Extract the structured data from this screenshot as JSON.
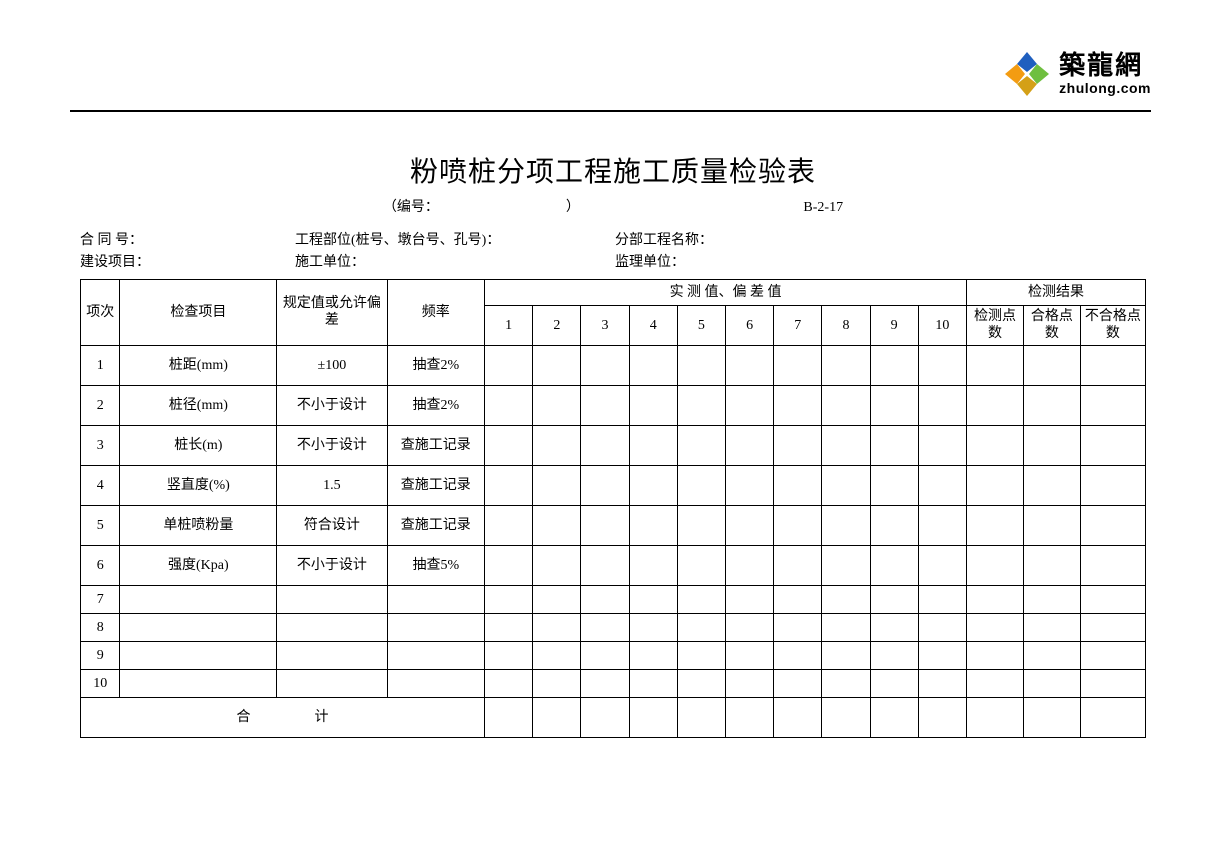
{
  "logo": {
    "cn": "築龍網",
    "en": "zhulong.com",
    "colors": {
      "blue": "#1f5fbf",
      "orange": "#f39c12",
      "green": "#6fbf3f",
      "gold": "#d4a017"
    }
  },
  "title": "粉喷桩分项工程施工质量检验表",
  "subtitle": {
    "label": "（编号：",
    "close": "）",
    "code": "B-2-17"
  },
  "meta": {
    "row1": {
      "c1": "合 同 号：",
      "c2": "工程部位(桩号、墩台号、孔号)：",
      "c3": "分部工程名称："
    },
    "row2": {
      "c1": "建设项目：",
      "c2": "施工单位：",
      "c3": "监理单位："
    }
  },
  "headers": {
    "seq": "项次",
    "item": "检查项目",
    "std": "规定值或允许偏差",
    "freq": "频率",
    "measured": "实 测 值、偏 差 值",
    "result": "检测结果",
    "nums": [
      "1",
      "2",
      "3",
      "4",
      "5",
      "6",
      "7",
      "8",
      "9",
      "10"
    ],
    "r1": "检测点数",
    "r2": "合格点数",
    "r3": "不合格点数"
  },
  "rows": [
    {
      "n": "1",
      "item": "桩距(mm)",
      "std": "±100",
      "freq": "抽查2%"
    },
    {
      "n": "2",
      "item": "桩径(mm)",
      "std": "不小于设计",
      "freq": "抽查2%"
    },
    {
      "n": "3",
      "item": "桩长(m)",
      "std": "不小于设计",
      "freq": "查施工记录"
    },
    {
      "n": "4",
      "item": "竖直度(%)",
      "std": "1.5",
      "freq": "查施工记录"
    },
    {
      "n": "5",
      "item": "单桩喷粉量",
      "std": "符合设计",
      "freq": "查施工记录"
    },
    {
      "n": "6",
      "item": "强度(Kpa)",
      "std": "不小于设计",
      "freq": "抽查5%"
    },
    {
      "n": "7",
      "item": "",
      "std": "",
      "freq": ""
    },
    {
      "n": "8",
      "item": "",
      "std": "",
      "freq": ""
    },
    {
      "n": "9",
      "item": "",
      "std": "",
      "freq": ""
    },
    {
      "n": "10",
      "item": "",
      "std": "",
      "freq": ""
    }
  ],
  "total_label": "合　　计"
}
